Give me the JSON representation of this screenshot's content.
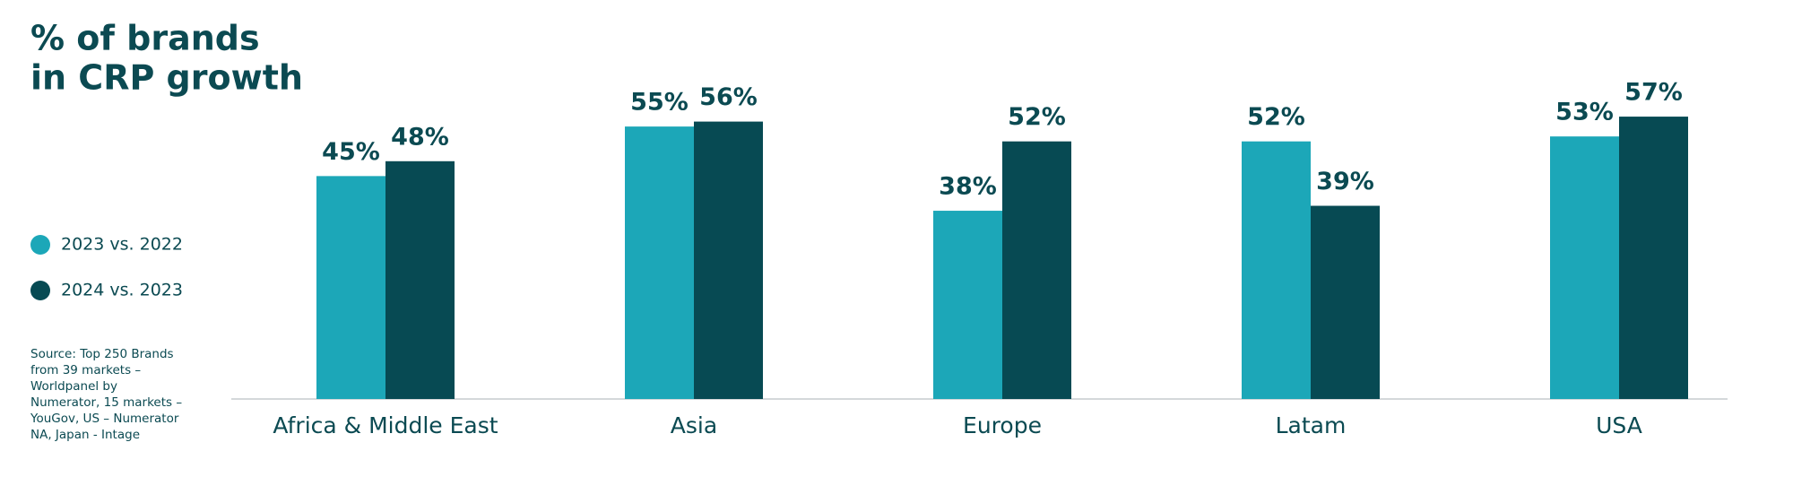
{
  "chart_data": {
    "type": "bar",
    "title": [
      "% of brands",
      "in CRP growth"
    ],
    "categories": [
      "Africa & Middle East",
      "Asia",
      "Europe",
      "Latam",
      "USA"
    ],
    "series": [
      {
        "name": "2023 vs. 2022",
        "color": "#1ca7b8",
        "values": [
          45,
          55,
          38,
          52,
          53
        ],
        "value_labels": [
          "45%",
          "55%",
          "38%",
          "52%",
          "53%"
        ]
      },
      {
        "name": "2024 vs. 2023",
        "color": "#074a53",
        "values": [
          48,
          56,
          52,
          39,
          57
        ],
        "value_labels": [
          "48%",
          "56%",
          "52%",
          "39%",
          "57%"
        ]
      }
    ],
    "ylim": [
      0,
      80
    ],
    "grid": false,
    "legend": "left",
    "source": "Source: Top 250 Brands from 39 markets – Worldpanel by Numerator, 15 markets – YouGov, US – Numerator NA, Japan - Intage"
  }
}
